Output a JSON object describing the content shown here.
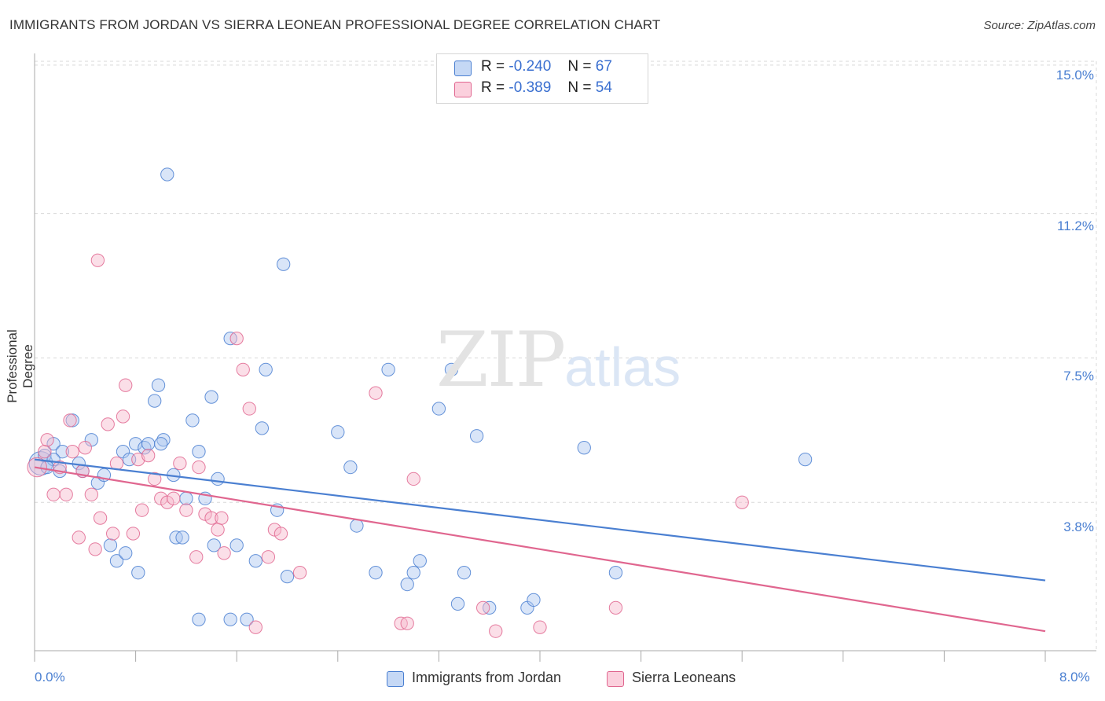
{
  "title": "IMMIGRANTS FROM JORDAN VS SIERRA LEONEAN PROFESSIONAL DEGREE CORRELATION CHART",
  "source": "Source: ZipAtlas.com",
  "watermark": {
    "part1": "ZIP",
    "part2": "atlas"
  },
  "colors": {
    "blue": "#4a7fd1",
    "blue_fill": "#aac6ef",
    "pink": "#e0668f",
    "pink_fill": "#f7b8cc",
    "grid": "#d8d8d8"
  },
  "legend": {
    "r_label": "R =",
    "n_label": "N =",
    "rows": [
      {
        "r": "-0.240",
        "n": "67"
      },
      {
        "r": "-0.389",
        "n": "54"
      }
    ]
  },
  "chart_data": {
    "type": "scatter",
    "title": "IMMIGRANTS FROM JORDAN VS SIERRA LEONEAN PROFESSIONAL DEGREE CORRELATION CHART",
    "xlabel": "",
    "ylabel": "Professional Degree",
    "xlim": [
      0,
      8
    ],
    "ylim": [
      0,
      15.3
    ],
    "x_tick_labels": [
      "0.0%",
      "8.0%"
    ],
    "y_ticks": [
      3.8,
      7.5,
      11.2,
      15.0
    ],
    "y_tick_labels": [
      "3.8%",
      "7.5%",
      "11.2%",
      "15.0%"
    ],
    "series": [
      {
        "name": "Immigrants from Jordan",
        "color": "#4a7fd1",
        "trend": {
          "x": [
            0,
            8
          ],
          "y": [
            4.9,
            1.8
          ]
        },
        "points": [
          [
            0.05,
            4.8,
            22
          ],
          [
            0.08,
            5.0,
            12
          ],
          [
            0.15,
            5.3,
            12
          ],
          [
            0.22,
            5.1,
            12
          ],
          [
            0.2,
            4.6,
            12
          ],
          [
            0.3,
            5.9,
            12
          ],
          [
            0.35,
            4.8,
            12
          ],
          [
            0.38,
            4.6,
            12
          ],
          [
            0.45,
            5.4,
            12
          ],
          [
            0.5,
            4.3,
            12
          ],
          [
            0.55,
            4.5,
            12
          ],
          [
            0.6,
            2.7,
            12
          ],
          [
            0.65,
            2.3,
            12
          ],
          [
            0.7,
            5.1,
            12
          ],
          [
            0.72,
            2.5,
            12
          ],
          [
            0.75,
            4.9,
            12
          ],
          [
            0.8,
            5.3,
            12
          ],
          [
            0.82,
            2.0,
            12
          ],
          [
            0.87,
            5.2,
            12
          ],
          [
            0.9,
            5.3,
            12
          ],
          [
            0.95,
            6.4,
            12
          ],
          [
            0.98,
            6.8,
            12
          ],
          [
            1.02,
            5.4,
            12
          ],
          [
            1.05,
            12.2,
            12
          ],
          [
            1.1,
            4.5,
            12
          ],
          [
            1.12,
            2.9,
            12
          ],
          [
            1.17,
            2.9,
            12
          ],
          [
            1.2,
            3.9,
            12
          ],
          [
            1.25,
            5.9,
            12
          ],
          [
            1.35,
            3.9,
            12
          ],
          [
            1.4,
            6.5,
            12
          ],
          [
            1.42,
            2.7,
            12
          ],
          [
            1.45,
            4.4,
            12
          ],
          [
            1.3,
            5.1,
            12
          ],
          [
            1.3,
            0.8,
            12
          ],
          [
            1.55,
            0.8,
            12
          ],
          [
            1.55,
            8.0,
            12
          ],
          [
            1.6,
            2.7,
            12
          ],
          [
            1.68,
            0.8,
            12
          ],
          [
            1.75,
            2.3,
            12
          ],
          [
            1.8,
            5.7,
            12
          ],
          [
            1.83,
            7.2,
            12
          ],
          [
            1.92,
            3.6,
            12
          ],
          [
            1.97,
            9.9,
            12
          ],
          [
            2.0,
            1.9,
            12
          ],
          [
            2.4,
            5.6,
            12
          ],
          [
            2.5,
            4.7,
            12
          ],
          [
            2.55,
            3.2,
            12
          ],
          [
            2.7,
            2.0,
            12
          ],
          [
            2.8,
            7.2,
            12
          ],
          [
            2.95,
            1.7,
            12
          ],
          [
            3.0,
            2.0,
            12
          ],
          [
            3.05,
            2.3,
            12
          ],
          [
            3.2,
            6.2,
            12
          ],
          [
            3.3,
            7.2,
            12
          ],
          [
            3.35,
            1.2,
            12
          ],
          [
            3.4,
            2.0,
            12
          ],
          [
            3.5,
            5.5,
            12
          ],
          [
            3.6,
            1.1,
            12
          ],
          [
            3.9,
            1.1,
            12
          ],
          [
            3.95,
            1.3,
            12
          ],
          [
            4.35,
            5.2,
            12
          ],
          [
            4.6,
            2.0,
            12
          ],
          [
            6.1,
            4.9,
            12
          ],
          [
            0.15,
            4.9,
            12
          ],
          [
            0.1,
            4.7,
            12
          ],
          [
            1.0,
            5.3,
            12
          ]
        ]
      },
      {
        "name": "Sierra Leoneans",
        "color": "#e0668f",
        "trend": {
          "x": [
            0,
            8
          ],
          "y": [
            4.7,
            0.5
          ]
        },
        "points": [
          [
            0.02,
            4.7,
            18
          ],
          [
            0.08,
            5.1,
            12
          ],
          [
            0.1,
            5.4,
            12
          ],
          [
            0.15,
            4.0,
            12
          ],
          [
            0.2,
            4.7,
            12
          ],
          [
            0.25,
            4.0,
            12
          ],
          [
            0.28,
            5.9,
            12
          ],
          [
            0.3,
            5.1,
            12
          ],
          [
            0.35,
            2.9,
            12
          ],
          [
            0.38,
            4.6,
            12
          ],
          [
            0.4,
            5.2,
            12
          ],
          [
            0.45,
            4.0,
            12
          ],
          [
            0.48,
            2.6,
            12
          ],
          [
            0.5,
            10.0,
            12
          ],
          [
            0.52,
            3.4,
            12
          ],
          [
            0.58,
            5.8,
            12
          ],
          [
            0.62,
            3.0,
            12
          ],
          [
            0.65,
            4.8,
            12
          ],
          [
            0.7,
            6.0,
            12
          ],
          [
            0.72,
            6.8,
            12
          ],
          [
            0.78,
            3.0,
            12
          ],
          [
            0.82,
            4.9,
            12
          ],
          [
            0.85,
            3.6,
            12
          ],
          [
            0.9,
            5.0,
            12
          ],
          [
            0.95,
            4.4,
            12
          ],
          [
            1.0,
            3.9,
            12
          ],
          [
            1.05,
            3.8,
            12
          ],
          [
            1.1,
            3.9,
            12
          ],
          [
            1.15,
            4.8,
            12
          ],
          [
            1.2,
            3.6,
            12
          ],
          [
            1.28,
            2.4,
            12
          ],
          [
            1.3,
            4.7,
            12
          ],
          [
            1.35,
            3.5,
            12
          ],
          [
            1.4,
            3.4,
            12
          ],
          [
            1.45,
            3.1,
            12
          ],
          [
            1.48,
            3.4,
            12
          ],
          [
            1.5,
            2.5,
            12
          ],
          [
            1.6,
            8.0,
            12
          ],
          [
            1.65,
            7.2,
            12
          ],
          [
            1.7,
            6.2,
            12
          ],
          [
            1.75,
            0.6,
            12
          ],
          [
            1.85,
            2.4,
            12
          ],
          [
            1.9,
            3.1,
            12
          ],
          [
            1.95,
            3.0,
            12
          ],
          [
            2.1,
            2.0,
            12
          ],
          [
            2.7,
            6.6,
            12
          ],
          [
            2.9,
            0.7,
            12
          ],
          [
            2.95,
            0.7,
            12
          ],
          [
            3.0,
            4.4,
            12
          ],
          [
            3.55,
            1.1,
            12
          ],
          [
            3.65,
            0.5,
            12
          ],
          [
            4.0,
            0.6,
            12
          ],
          [
            4.6,
            1.1,
            12
          ],
          [
            5.6,
            3.8,
            12
          ]
        ]
      }
    ]
  },
  "bottom_legend": [
    "Immigrants from Jordan",
    "Sierra Leoneans"
  ]
}
